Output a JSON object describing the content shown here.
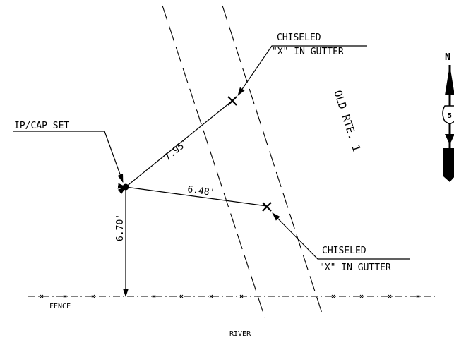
{
  "labels": {
    "ip_cap": "IP/CAP SET",
    "chiseled_top_line1": "CHISELED",
    "chiseled_top_line2": "\"X\" IN GUTTER",
    "chiseled_bottom_line1": "CHISELED",
    "chiseled_bottom_line2": "\"X\" IN GUTTER",
    "road": "OLD RTE. 1",
    "fence": "FENCE",
    "river": "RIVER",
    "north": "N",
    "shield_number": "5"
  },
  "dimensions": {
    "to_top_x": "7.95'",
    "to_bottom_x": "6.48'",
    "to_fence": "6.70'"
  }
}
